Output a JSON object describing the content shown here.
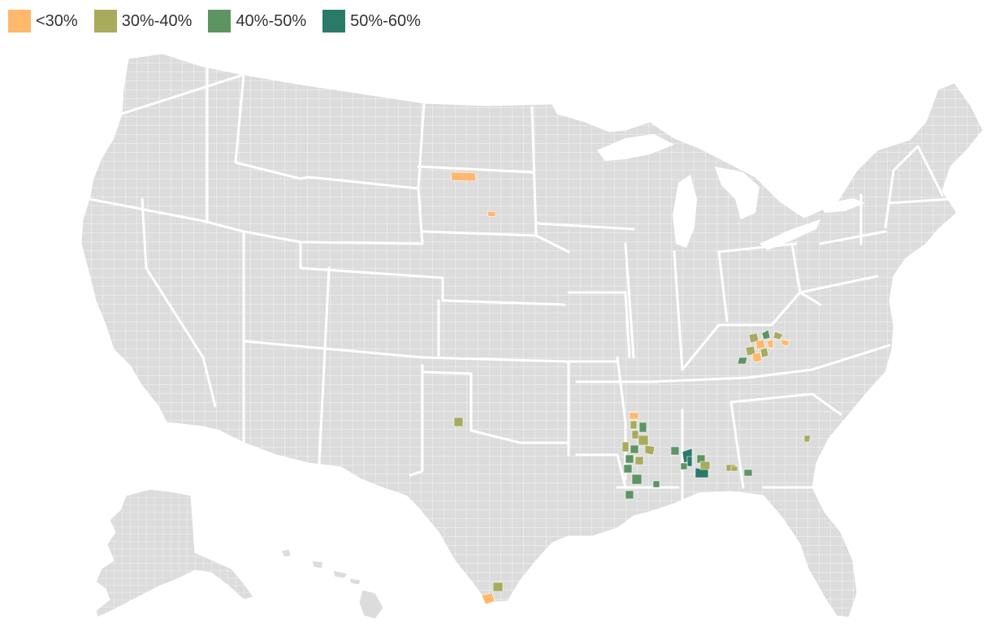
{
  "legend": [
    {
      "label": "<30%",
      "color": "#ffb86c"
    },
    {
      "label": "30%-40%",
      "color": "#a8ab5c"
    },
    {
      "label": "40%-50%",
      "color": "#5e9462"
    },
    {
      "label": "50%-60%",
      "color": "#2a7a6a"
    }
  ],
  "map": {
    "base_color": "#dcdcdc",
    "border_color": "#ffffff",
    "highlighted_counties": [
      {
        "name": "nd-county-1",
        "bin": 0
      },
      {
        "name": "sd-county-1",
        "bin": 0
      },
      {
        "name": "tx-panhandle-county",
        "bin": 1
      },
      {
        "name": "tx-south-county-1",
        "bin": 1
      },
      {
        "name": "tx-south-county-2",
        "bin": 0
      },
      {
        "name": "ky-county-1",
        "bin": 1
      },
      {
        "name": "ky-county-2",
        "bin": 0
      },
      {
        "name": "ky-county-3",
        "bin": 2
      },
      {
        "name": "ky-county-4",
        "bin": 1
      },
      {
        "name": "ky-county-5",
        "bin": 0
      },
      {
        "name": "ky-county-6",
        "bin": 1
      },
      {
        "name": "ky-county-7",
        "bin": 2
      },
      {
        "name": "ky-county-8",
        "bin": 0
      },
      {
        "name": "va-county-1",
        "bin": 1
      },
      {
        "name": "va-county-2",
        "bin": 0
      },
      {
        "name": "ms-county-1",
        "bin": 0
      },
      {
        "name": "ms-county-2",
        "bin": 1
      },
      {
        "name": "ms-county-3",
        "bin": 2
      },
      {
        "name": "ms-county-4",
        "bin": 1
      },
      {
        "name": "ms-county-5",
        "bin": 1
      },
      {
        "name": "ms-county-6",
        "bin": 2
      },
      {
        "name": "ms-county-7",
        "bin": 1
      },
      {
        "name": "ms-county-8",
        "bin": 2
      },
      {
        "name": "ms-county-9",
        "bin": 1
      },
      {
        "name": "ms-county-10",
        "bin": 2
      },
      {
        "name": "ms-county-11",
        "bin": 2
      },
      {
        "name": "ms-county-12",
        "bin": 2
      },
      {
        "name": "ms-county-13",
        "bin": 1
      },
      {
        "name": "ms-county-14",
        "bin": 2
      },
      {
        "name": "al-county-1",
        "bin": 2
      },
      {
        "name": "al-county-2",
        "bin": 3
      },
      {
        "name": "al-county-3",
        "bin": 3
      },
      {
        "name": "al-county-4",
        "bin": 2
      },
      {
        "name": "al-county-5",
        "bin": 1
      },
      {
        "name": "al-county-6",
        "bin": 1
      },
      {
        "name": "al-county-7",
        "bin": 3
      },
      {
        "name": "al-county-8",
        "bin": 2
      },
      {
        "name": "ga-county-1",
        "bin": 1
      },
      {
        "name": "ga-county-2",
        "bin": 2
      },
      {
        "name": "sc-county-1",
        "bin": 1
      }
    ]
  }
}
